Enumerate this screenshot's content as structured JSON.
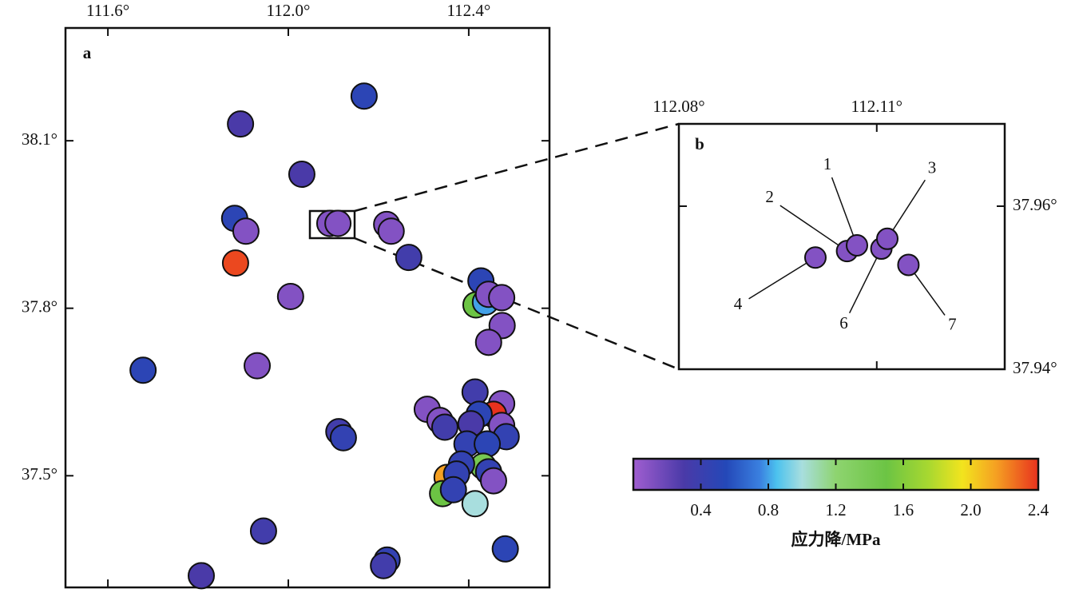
{
  "chart_data": [
    {
      "type": "scatter",
      "panel_label": "a",
      "xlim": [
        111.506,
        112.579
      ],
      "ylim": [
        37.3,
        38.302
      ],
      "xticks": [
        {
          "value": 111.6,
          "label": "111.6°"
        },
        {
          "value": 112.0,
          "label": "112.0°"
        },
        {
          "value": 112.4,
          "label": "112.4°"
        }
      ],
      "yticks": [
        {
          "value": 37.5,
          "label": "37.5°"
        },
        {
          "value": 37.8,
          "label": "37.8°"
        },
        {
          "value": 38.1,
          "label": "38.1°"
        }
      ],
      "x": [
        112.168,
        111.894,
        112.03,
        111.881,
        111.906,
        111.883,
        112.092,
        112.11,
        112.218,
        112.228,
        112.267,
        112.005,
        112.427,
        112.416,
        112.437,
        112.444,
        112.473,
        112.474,
        112.444,
        111.678,
        111.931,
        112.112,
        112.122,
        112.308,
        112.336,
        112.347,
        112.414,
        112.473,
        112.455,
        112.423,
        112.405,
        112.473,
        112.483,
        112.396,
        112.441,
        112.432,
        112.384,
        112.444,
        112.352,
        112.373,
        112.342,
        112.366,
        112.414,
        112.455,
        111.945,
        112.219,
        112.211,
        112.481,
        111.807
      ],
      "y": [
        38.18,
        38.13,
        38.04,
        37.961,
        37.938,
        37.881,
        37.952,
        37.952,
        37.95,
        37.938,
        37.891,
        37.821,
        37.849,
        37.806,
        37.811,
        37.825,
        37.819,
        37.769,
        37.739,
        37.689,
        37.697,
        37.579,
        37.568,
        37.619,
        37.599,
        37.587,
        37.65,
        37.629,
        37.61,
        37.61,
        37.593,
        37.59,
        37.57,
        37.557,
        37.557,
        37.517,
        37.521,
        37.507,
        37.497,
        37.503,
        37.468,
        37.475,
        37.45,
        37.491,
        37.401,
        37.349,
        37.339,
        37.369,
        37.321
      ],
      "values": [
        0.5,
        0.3,
        0.3,
        0.5,
        0.1,
        2.35,
        0.1,
        0.1,
        0.1,
        0.1,
        0.35,
        0.1,
        0.5,
        1.5,
        0.8,
        0.1,
        0.1,
        0.1,
        0.1,
        0.5,
        0.1,
        0.35,
        0.45,
        0.1,
        0.1,
        0.35,
        0.35,
        0.1,
        2.4,
        0.5,
        0.3,
        0.1,
        0.45,
        0.45,
        0.5,
        1.4,
        0.45,
        0.45,
        2.15,
        0.45,
        1.5,
        0.45,
        1.0,
        0.1,
        0.35,
        0.45,
        0.35,
        0.5,
        0.3
      ]
    },
    {
      "type": "scatter",
      "panel_label": "b",
      "xlim": [
        112.08,
        112.1294
      ],
      "ylim": [
        37.94,
        37.9701
      ],
      "xticks": [
        {
          "value": 112.08,
          "label": "112.08°"
        },
        {
          "value": 112.11,
          "label": "112.11°"
        }
      ],
      "yticks": [
        {
          "value": 37.94,
          "label": "37.94°"
        },
        {
          "value": 37.96,
          "label": "37.96°"
        }
      ],
      "labels": [
        "4",
        "2",
        "1",
        "6",
        "3",
        "7"
      ],
      "x": [
        112.1007,
        112.1055,
        112.107,
        112.1107,
        112.1116,
        112.1148
      ],
      "y": [
        37.9537,
        37.9545,
        37.9552,
        37.9548,
        37.956,
        37.9528
      ],
      "values": [
        0.1,
        0.1,
        0.1,
        0.1,
        0.1,
        0.1
      ]
    },
    {
      "type": "colorbar",
      "title": "应力降/MPa",
      "clim": [
        0,
        2.4
      ],
      "ticks": [
        0.4,
        0.8,
        1.2,
        1.6,
        {
          "value": 2.0,
          "label": "2.0"
        },
        2.4
      ],
      "colormap": [
        {
          "value": 0,
          "color": "#a05ed0"
        },
        {
          "value": 0.3,
          "color": "#4a3aa8"
        },
        {
          "value": 0.55,
          "color": "#2448b8"
        },
        {
          "value": 0.75,
          "color": "#3a80e0"
        },
        {
          "value": 0.85,
          "color": "#4cc2ee"
        },
        {
          "value": 1.0,
          "color": "#a8dede"
        },
        {
          "value": 1.2,
          "color": "#8ed470"
        },
        {
          "value": 1.5,
          "color": "#6cc444"
        },
        {
          "value": 1.75,
          "color": "#a8d830"
        },
        {
          "value": 1.95,
          "color": "#f2e41e"
        },
        {
          "value": 2.15,
          "color": "#f5a022"
        },
        {
          "value": 2.4,
          "color": "#e8321e"
        }
      ]
    }
  ]
}
